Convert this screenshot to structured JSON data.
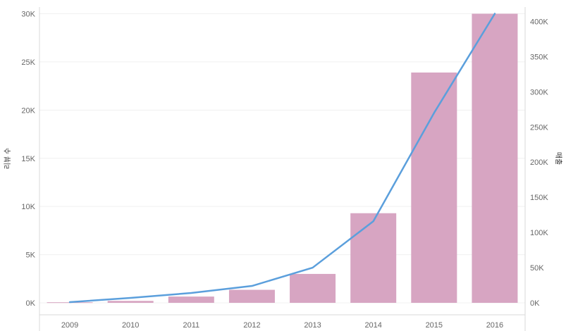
{
  "chart_data": {
    "type": "bar",
    "categories": [
      "2009",
      "2010",
      "2011",
      "2012",
      "2013",
      "2014",
      "2015",
      "2016"
    ],
    "series": [
      {
        "type": "bar",
        "axis": "left",
        "color": "#d7a5c2",
        "values": [
          60,
          200,
          650,
          1350,
          3000,
          9300,
          23900,
          30000
        ]
      },
      {
        "type": "line",
        "axis": "right",
        "color": "#5b9fdc",
        "values": [
          1000,
          7000,
          14000,
          24000,
          50000,
          116000,
          270000,
          411000
        ]
      }
    ],
    "ylabel": "리뷰 수",
    "y2label": "매출",
    "ylim": [
      0,
      30000
    ],
    "y2lim": [
      0,
      411000
    ],
    "yticks": [
      {
        "value": 0,
        "label": "0K"
      },
      {
        "value": 5000,
        "label": "5K"
      },
      {
        "value": 10000,
        "label": "10K"
      },
      {
        "value": 15000,
        "label": "15K"
      },
      {
        "value": 20000,
        "label": "20K"
      },
      {
        "value": 25000,
        "label": "25K"
      },
      {
        "value": 30000,
        "label": "30K"
      }
    ],
    "y2ticks": [
      {
        "value": 0,
        "label": "0K"
      },
      {
        "value": 50000,
        "label": "50K"
      },
      {
        "value": 100000,
        "label": "100K"
      },
      {
        "value": 150000,
        "label": "150K"
      },
      {
        "value": 200000,
        "label": "200K"
      },
      {
        "value": 250000,
        "label": "250K"
      },
      {
        "value": 300000,
        "label": "300K"
      },
      {
        "value": 350000,
        "label": "350K"
      },
      {
        "value": 400000,
        "label": "400K"
      }
    ],
    "grid": true,
    "legend": "none"
  }
}
